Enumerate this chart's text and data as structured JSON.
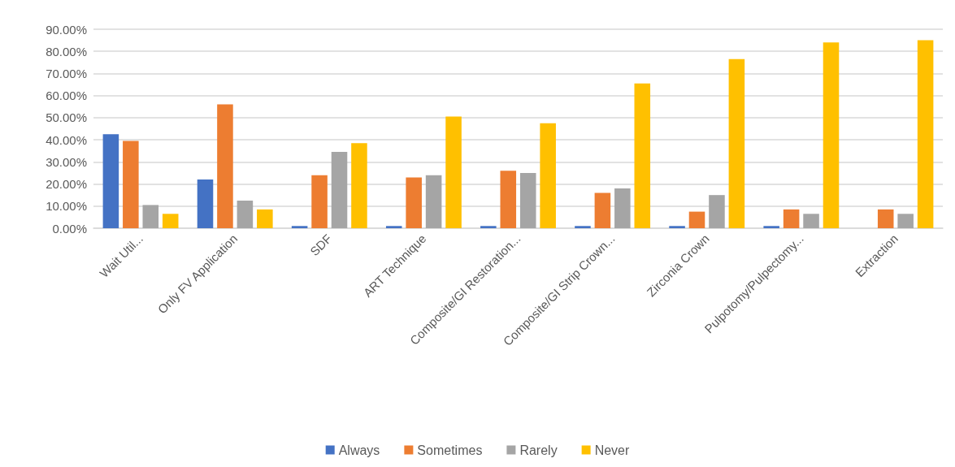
{
  "chart_data": {
    "type": "bar",
    "categories": [
      "Wait Util...",
      "Only FV Application",
      "SDF",
      "ART Technique",
      "Composite/GI Restoration...",
      "Composite/GI Strip Crown...",
      "Zirconia Crown",
      "Pulpotomy/Pulpectomy...",
      "Extraction"
    ],
    "series": [
      {
        "name": "Always",
        "color": "#4472c4",
        "values": [
          42.5,
          22,
          1,
          1,
          1,
          1,
          1,
          1,
          0
        ]
      },
      {
        "name": "Sometimes",
        "color": "#ed7d31",
        "values": [
          39.5,
          56,
          24,
          23,
          26,
          16,
          7.5,
          8.5,
          8.5
        ]
      },
      {
        "name": "Rarely",
        "color": "#a5a5a5",
        "values": [
          10.5,
          12.5,
          34.5,
          24,
          25,
          18,
          15,
          6.5,
          6.5
        ]
      },
      {
        "name": "Never",
        "color": "#ffc000",
        "values": [
          6.5,
          8.5,
          38.5,
          50.5,
          47.5,
          65.5,
          76.5,
          84,
          85
        ]
      }
    ],
    "ylim": [
      0,
      90
    ],
    "yticks": [
      {
        "value": 0,
        "label": "0.00%"
      },
      {
        "value": 10,
        "label": "10.00%"
      },
      {
        "value": 20,
        "label": "20.00%"
      },
      {
        "value": 30,
        "label": "30.00%"
      },
      {
        "value": 40,
        "label": "40.00%"
      },
      {
        "value": 50,
        "label": "50.00%"
      },
      {
        "value": 60,
        "label": "60.00%"
      },
      {
        "value": 70,
        "label": "70.00%"
      },
      {
        "value": 80,
        "label": "80.00%"
      },
      {
        "value": 90,
        "label": "90.00%"
      }
    ],
    "grid": "y",
    "legend": "bottom"
  }
}
